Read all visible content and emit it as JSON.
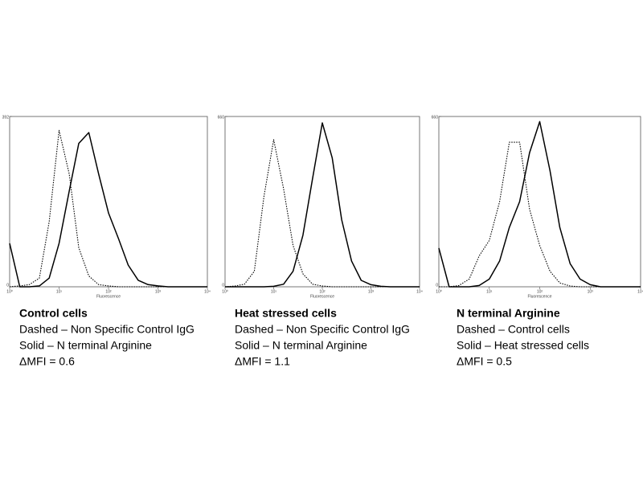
{
  "chart_data": [
    {
      "type": "line",
      "title": "Control cells",
      "annotations": [
        "Dashed – Non Specific Control IgG",
        "Solid – N terminal Arginine",
        "ΔMFI = 0.6"
      ],
      "x_label": "Fluorescence",
      "log_x": true,
      "x": [
        1,
        1.6,
        2.5,
        4,
        6.3,
        10,
        16,
        25,
        40,
        63,
        100,
        160,
        250,
        400,
        630,
        1000,
        1600,
        2500,
        4000,
        6300,
        10000
      ],
      "xlim": [
        1,
        10000
      ],
      "xticks": [
        {
          "value": 1,
          "label": "10⁰"
        },
        {
          "value": 10,
          "label": "10¹"
        },
        {
          "value": 100,
          "label": "10²"
        },
        {
          "value": 1000,
          "label": "10³"
        },
        {
          "value": 10000,
          "label": "10⁴"
        }
      ],
      "ylim": [
        0,
        392
      ],
      "yticks": [
        0,
        392
      ],
      "series": [
        {
          "color": "#000000",
          "dashed": true,
          "values": [
            0,
            2,
            5,
            20,
            150,
            360,
            260,
            90,
            25,
            5,
            2,
            0,
            0,
            0,
            0,
            0,
            0,
            0,
            0,
            0,
            0
          ]
        },
        {
          "color": "#000000",
          "dashed": false,
          "values": [
            100,
            0,
            0,
            2,
            20,
            100,
            220,
            330,
            355,
            260,
            170,
            110,
            50,
            15,
            5,
            2,
            0,
            0,
            0,
            0,
            0
          ]
        }
      ]
    },
    {
      "type": "line",
      "title": "Heat stressed cells",
      "annotations": [
        "Dashed – Non Specific Control IgG",
        "Solid – N terminal Arginine",
        "ΔMFI = 1.1"
      ],
      "x_label": "Fluorescence",
      "log_x": true,
      "x": [
        1,
        1.6,
        2.5,
        4,
        6.3,
        10,
        16,
        25,
        40,
        63,
        100,
        160,
        250,
        400,
        630,
        1000,
        1600,
        2500,
        4000,
        6300,
        10000
      ],
      "xlim": [
        1,
        10000
      ],
      "xticks": [
        {
          "value": 1,
          "label": "10⁰"
        },
        {
          "value": 10,
          "label": "10¹"
        },
        {
          "value": 100,
          "label": "10²"
        },
        {
          "value": 1000,
          "label": "10³"
        },
        {
          "value": 10000,
          "label": "10⁴"
        }
      ],
      "ylim": [
        0,
        660
      ],
      "yticks": [
        0,
        660
      ],
      "series": [
        {
          "color": "#000000",
          "dashed": true,
          "values": [
            0,
            3,
            10,
            60,
            350,
            570,
            380,
            160,
            50,
            10,
            3,
            0,
            0,
            0,
            0,
            0,
            0,
            0,
            0,
            0,
            0
          ]
        },
        {
          "color": "#000000",
          "dashed": false,
          "values": [
            0,
            0,
            0,
            0,
            0,
            2,
            10,
            60,
            200,
            420,
            635,
            500,
            260,
            100,
            25,
            8,
            2,
            0,
            0,
            0,
            0
          ]
        }
      ]
    },
    {
      "type": "line",
      "title": "N terminal Arginine",
      "annotations": [
        "Dashed – Control cells",
        "Solid – Heat stressed cells",
        "ΔMFI = 0.5"
      ],
      "x_label": "Fluorescence",
      "log_x": true,
      "x": [
        1,
        1.6,
        2.5,
        4,
        6.3,
        10,
        16,
        25,
        40,
        63,
        100,
        160,
        250,
        400,
        630,
        1000,
        1600,
        2500,
        4000,
        6300,
        10000
      ],
      "xlim": [
        1,
        10000
      ],
      "xticks": [
        {
          "value": 1,
          "label": "10⁰"
        },
        {
          "value": 10,
          "label": "10¹"
        },
        {
          "value": 100,
          "label": "10²"
        },
        {
          "value": 1000,
          "label": "10³"
        },
        {
          "value": 10000,
          "label": "10⁴"
        }
      ],
      "ylim": [
        0,
        660
      ],
      "yticks": [
        0,
        660
      ],
      "series": [
        {
          "color": "#000000",
          "dashed": true,
          "values": [
            0,
            0,
            5,
            30,
            120,
            180,
            330,
            560,
            560,
            300,
            160,
            60,
            15,
            3,
            0,
            0,
            0,
            0,
            0,
            0,
            0
          ]
        },
        {
          "color": "#000000",
          "dashed": false,
          "values": [
            150,
            0,
            0,
            0,
            5,
            30,
            100,
            230,
            330,
            520,
            640,
            450,
            230,
            90,
            30,
            8,
            0,
            0,
            0,
            0,
            0
          ]
        }
      ]
    }
  ]
}
